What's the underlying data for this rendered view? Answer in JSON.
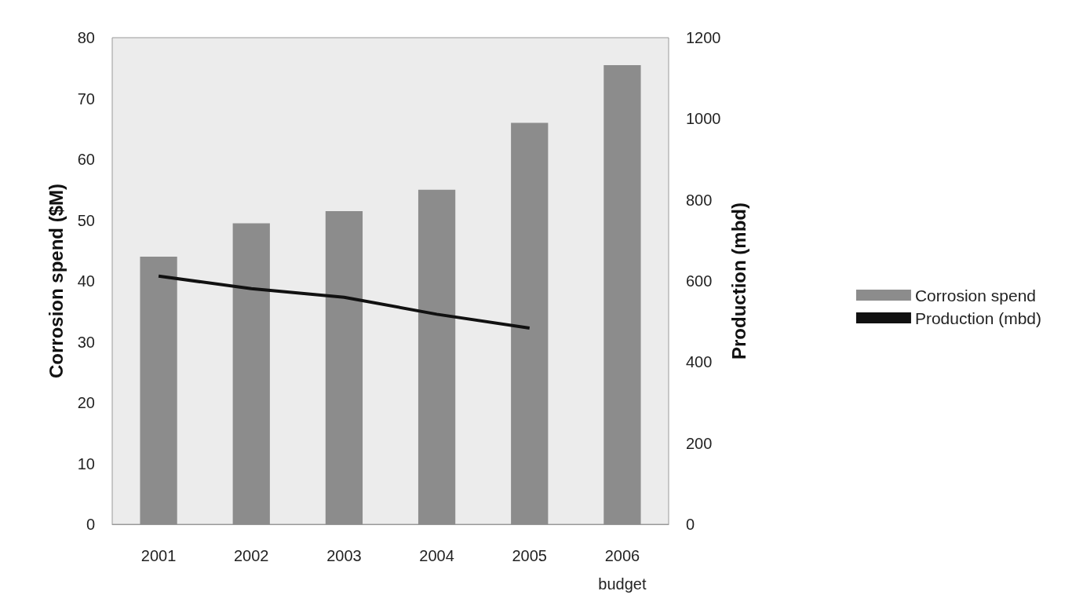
{
  "chart_data": {
    "type": "bar",
    "categories": [
      "2001",
      "2002",
      "2003",
      "2004",
      "2005",
      "2006\nbudget"
    ],
    "ylabel": "Corrosion spend ($M)",
    "y2label": "Production (mbd)",
    "ylim": [
      0,
      80
    ],
    "yticks": [
      0,
      10,
      20,
      30,
      40,
      50,
      60,
      70,
      80
    ],
    "y2lim": [
      0,
      1200
    ],
    "y2ticks": [
      0,
      200,
      400,
      600,
      800,
      1000,
      1200
    ],
    "legend": "right",
    "grid": false,
    "series": [
      {
        "name": "Corrosion spend",
        "color": "#8c8c8c",
        "values": [
          44,
          49.5,
          51.5,
          55,
          66,
          75.5
        ]
      },
      {
        "name": "Production (mbd)",
        "type": "line",
        "axis": "y2",
        "color": "#111111",
        "values": [
          612,
          581,
          560,
          518,
          484,
          null
        ]
      }
    ]
  }
}
